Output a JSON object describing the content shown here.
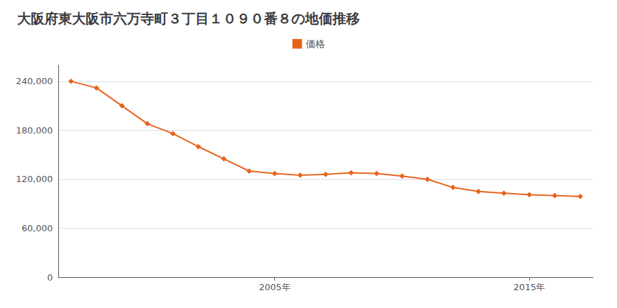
{
  "chart_data": {
    "type": "line",
    "title": "大阪府東大阪市六万寺町３丁目１０９０番８の地価推移",
    "x": [
      1997,
      1998,
      1999,
      2000,
      2001,
      2002,
      2003,
      2004,
      2005,
      2006,
      2007,
      2008,
      2009,
      2010,
      2011,
      2012,
      2013,
      2014,
      2015,
      2016,
      2017
    ],
    "series": [
      {
        "name": "価格",
        "color": "#E8621A",
        "values": [
          240000,
          232000,
          210000,
          188000,
          176000,
          160000,
          145000,
          130000,
          127000,
          125000,
          126000,
          128000,
          127000,
          124000,
          120000,
          110000,
          105000,
          103000,
          101000,
          100000,
          99000
        ]
      }
    ],
    "marker": "diamond",
    "xlim": [
      1996.5,
      2017.5
    ],
    "xticks": [
      {
        "value": 2005,
        "label": "2005年"
      },
      {
        "value": 2015,
        "label": "2015年"
      }
    ],
    "ylim": [
      0,
      260000
    ],
    "yticks": [
      0,
      {
        "value": 60000,
        "label": "60,000"
      },
      {
        "value": 120000,
        "label": "120,000"
      },
      {
        "value": 180000,
        "label": "180,000"
      },
      {
        "value": 240000,
        "label": "240,000"
      }
    ],
    "grid": true,
    "legend": "top"
  }
}
